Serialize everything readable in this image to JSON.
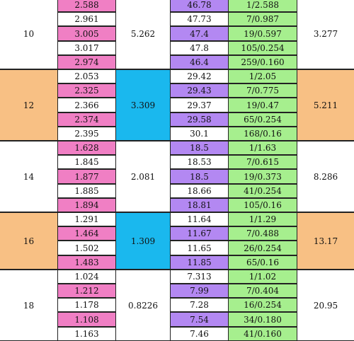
{
  "colors": {
    "white": "#ffffff",
    "pink": "#f07fc4",
    "purple": "#b388f2",
    "green": "#a6ef8e",
    "orange": "#f8c084",
    "cyan": "#1ab8ee"
  },
  "groups": [
    {
      "label": "10",
      "mid": "5.262",
      "right": "3.277",
      "shade": "white",
      "rows": [
        {
          "a": "2.588",
          "b": "46.78",
          "c": "1/2.588",
          "hl": true
        },
        {
          "a": "2.961",
          "b": "47.73",
          "c": "7/0.987",
          "hl": false
        },
        {
          "a": "3.005",
          "b": "47.4",
          "c": "19/0.597",
          "hl": true
        },
        {
          "a": "3.017",
          "b": "47.8",
          "c": "105/0.254",
          "hl": false
        },
        {
          "a": "2.974",
          "b": "46.4",
          "c": "259/0.160",
          "hl": true
        }
      ]
    },
    {
      "label": "12",
      "mid": "3.309",
      "right": "5.211",
      "shade": "orange",
      "rows": [
        {
          "a": "2.053",
          "b": "29.42",
          "c": "1/2.05",
          "hl": false
        },
        {
          "a": "2.325",
          "b": "29.43",
          "c": "7/0.775",
          "hl": true
        },
        {
          "a": "2.366",
          "b": "29.37",
          "c": "19/0.47",
          "hl": false
        },
        {
          "a": "2.374",
          "b": "29.58",
          "c": "65/0.254",
          "hl": true
        },
        {
          "a": "2.395",
          "b": "30.1",
          "c": "168/0.16",
          "hl": false
        }
      ]
    },
    {
      "label": "14",
      "mid": "2.081",
      "right": "8.286",
      "shade": "white",
      "rows": [
        {
          "a": "1.628",
          "b": "18.5",
          "c": "1/1.63",
          "hl": true
        },
        {
          "a": "1.845",
          "b": "18.53",
          "c": "7/0.615",
          "hl": false
        },
        {
          "a": "1.877",
          "b": "18.5",
          "c": "19/0.373",
          "hl": true
        },
        {
          "a": "1.885",
          "b": "18.66",
          "c": "41/0.254",
          "hl": false
        },
        {
          "a": "1.894",
          "b": "18.81",
          "c": "105/0.16",
          "hl": true
        }
      ]
    },
    {
      "label": "16",
      "mid": "1.309",
      "right": "13.17",
      "shade": "orange",
      "rows": [
        {
          "a": "1.291",
          "b": "11.64",
          "c": "1/1.29",
          "hl": false
        },
        {
          "a": "1.464",
          "b": "11.67",
          "c": "7/0.488",
          "hl": true
        },
        {
          "a": "1.502",
          "b": "11.65",
          "c": "26/0.254",
          "hl": false
        },
        {
          "a": "1.483",
          "b": "11.85",
          "c": "65/0.16",
          "hl": true
        }
      ]
    },
    {
      "label": "18",
      "mid": "0.8226",
      "right": "20.95",
      "shade": "white",
      "rows": [
        {
          "a": "1.024",
          "b": "7.313",
          "c": "1/1.02",
          "hl": false
        },
        {
          "a": "1.212",
          "b": "7.99",
          "c": "7/0.404",
          "hl": true
        },
        {
          "a": "1.178",
          "b": "7.28",
          "c": "16/0.254",
          "hl": false
        },
        {
          "a": "1.108",
          "b": "7.54",
          "c": "34/0.180",
          "hl": true
        },
        {
          "a": "1.163",
          "b": "7.46",
          "c": "41/0.160",
          "hl": false
        }
      ]
    }
  ]
}
